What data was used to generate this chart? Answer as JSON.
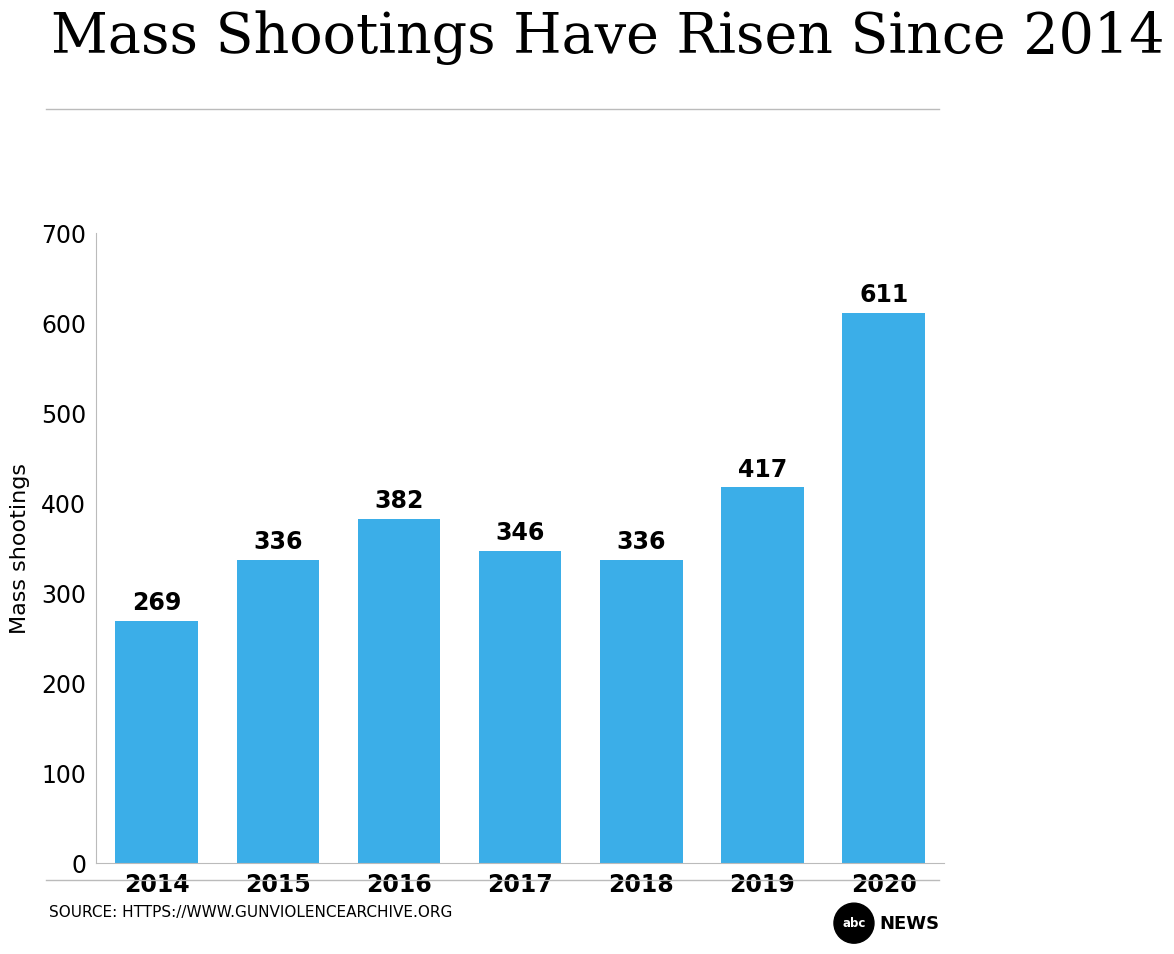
{
  "title": "Mass Shootings Have Risen Since 2014",
  "years": [
    "2014",
    "2015",
    "2016",
    "2017",
    "2018",
    "2019",
    "2020"
  ],
  "values": [
    269,
    336,
    382,
    346,
    336,
    417,
    611
  ],
  "bar_color": "#3BAEE8",
  "ylabel": "Mass shootings",
  "ylim": [
    0,
    700
  ],
  "yticks": [
    0,
    100,
    200,
    300,
    400,
    500,
    600,
    700
  ],
  "source_text": "SOURCE: HTTPS://WWW.GUNVIOLENCEARCHIVE.ORG",
  "background_color": "#FFFFFF",
  "title_fontsize": 40,
  "label_fontsize": 16,
  "tick_fontsize": 17,
  "value_fontsize": 17,
  "source_fontsize": 11
}
